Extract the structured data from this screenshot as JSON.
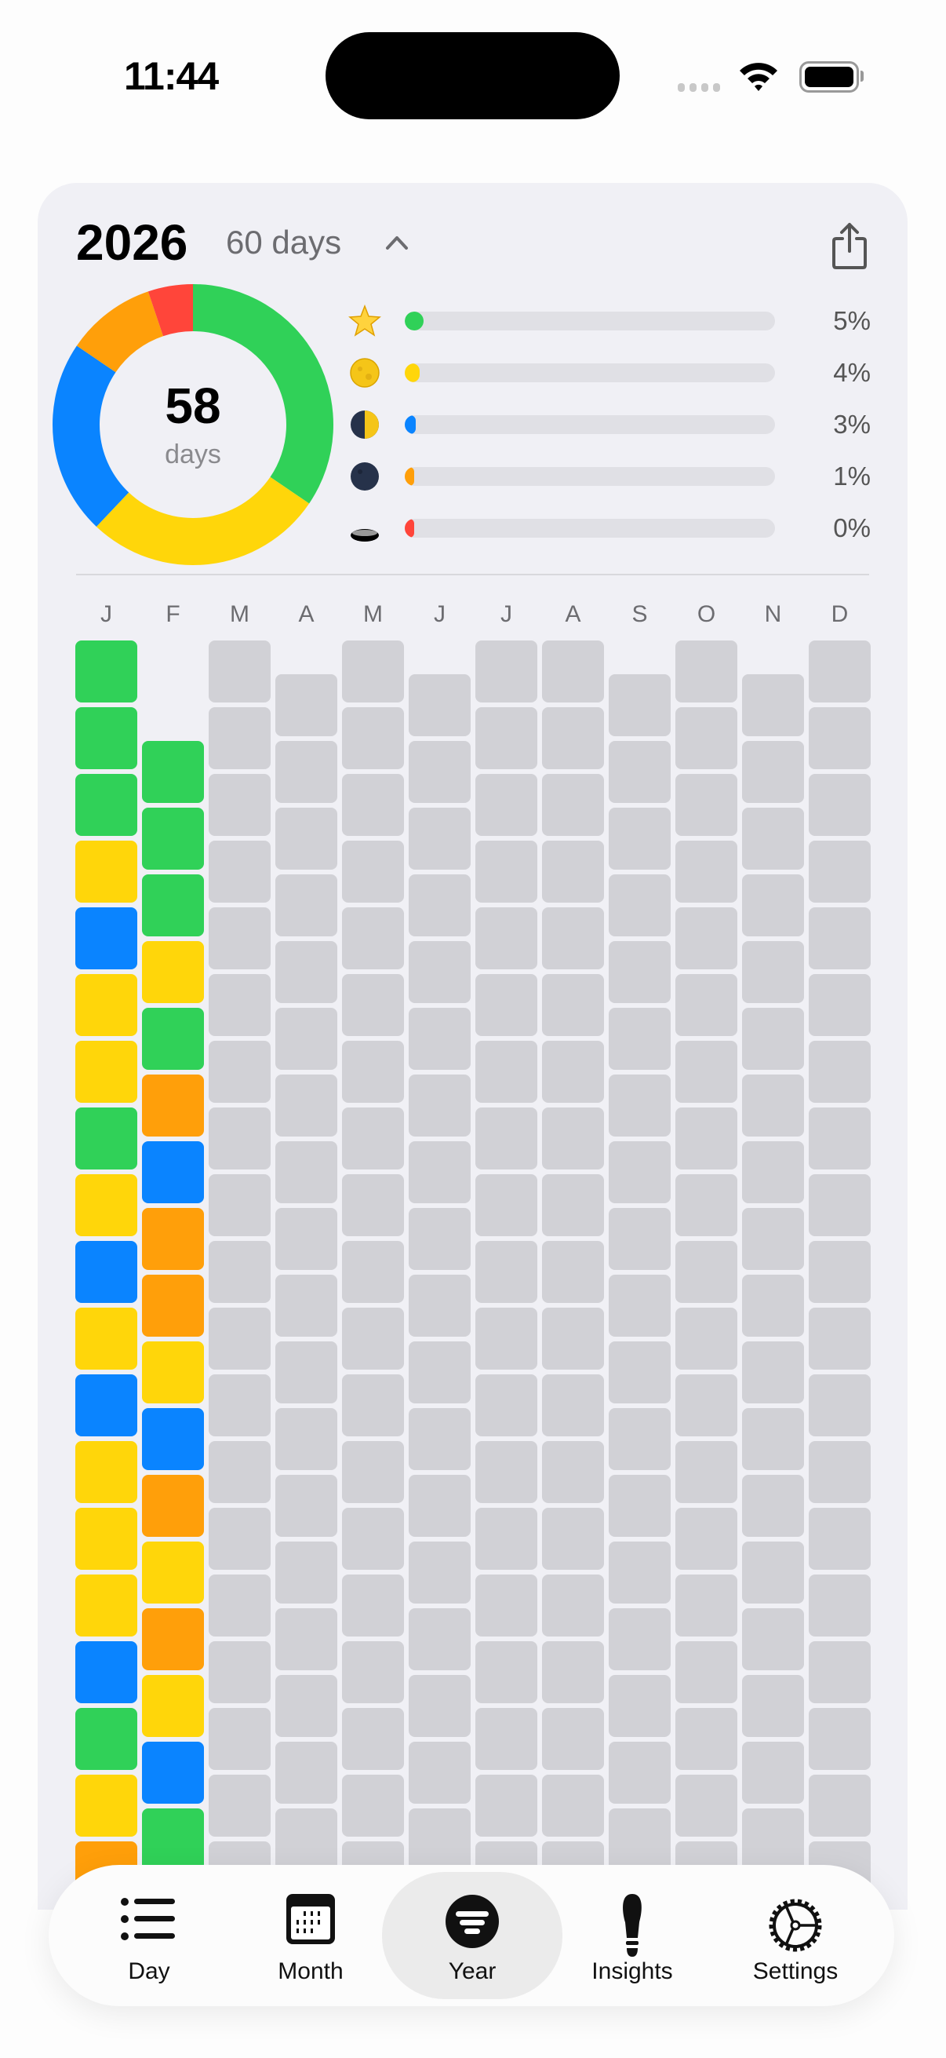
{
  "status_bar": {
    "time": "11:44"
  },
  "header": {
    "year": "2026",
    "day_count": "60 days",
    "collapse_icon": "chevron-up-icon",
    "share_icon": "share-icon"
  },
  "summary": {
    "total": "58",
    "total_label": "days",
    "donut": [
      {
        "mood": "great",
        "color": "#30d158",
        "days": 20
      },
      {
        "mood": "good",
        "color": "#ffd60a",
        "days": 16
      },
      {
        "mood": "okay",
        "color": "#0a84ff",
        "days": 13
      },
      {
        "mood": "bad",
        "color": "#ff9f0a",
        "days": 6
      },
      {
        "mood": "awful",
        "color": "#ff453a",
        "days": 3
      }
    ],
    "legend": [
      {
        "icon": "star-icon",
        "color": "#30d158",
        "percent": 5,
        "label": "5%"
      },
      {
        "icon": "full-moon-icon",
        "color": "#ffd60a",
        "percent": 4,
        "label": "4%"
      },
      {
        "icon": "half-moon-icon",
        "color": "#0a84ff",
        "percent": 3,
        "label": "3%"
      },
      {
        "icon": "new-moon-icon",
        "color": "#ff9f0a",
        "percent": 1,
        "label": "1%"
      },
      {
        "icon": "hole-icon",
        "color": "#ff453a",
        "percent": 0,
        "label": "0%"
      }
    ]
  },
  "calendar": {
    "colors": {
      "g": "#30d158",
      "y": "#ffd60a",
      "b": "#0a84ff",
      "o": "#ff9f0a",
      "r": "#ff453a",
      "empty": "#d1d1d6"
    },
    "months": [
      {
        "label": "J",
        "days": 31,
        "moods": [
          "g",
          "g",
          "g",
          "y",
          "b",
          "y",
          "y",
          "g",
          "y",
          "b",
          "y",
          "b",
          "y",
          "y",
          "y",
          "b",
          "g",
          "y",
          "o"
        ]
      },
      {
        "label": "F",
        "days": 28,
        "moods": [
          "g",
          "g",
          "g",
          "y",
          "g",
          "o",
          "b",
          "o",
          "o",
          "y",
          "b",
          "o",
          "y",
          "o",
          "y",
          "b",
          "g"
        ]
      },
      {
        "label": "M",
        "days": 31,
        "moods": []
      },
      {
        "label": "A",
        "days": 30,
        "moods": []
      },
      {
        "label": "M",
        "days": 31,
        "moods": []
      },
      {
        "label": "J",
        "days": 30,
        "moods": []
      },
      {
        "label": "J",
        "days": 31,
        "moods": []
      },
      {
        "label": "A",
        "days": 31,
        "moods": []
      },
      {
        "label": "S",
        "days": 30,
        "moods": []
      },
      {
        "label": "O",
        "days": 31,
        "moods": []
      },
      {
        "label": "N",
        "days": 30,
        "moods": []
      },
      {
        "label": "D",
        "days": 31,
        "moods": []
      }
    ]
  },
  "tabs": [
    {
      "label": "Day",
      "icon": "list-icon"
    },
    {
      "label": "Month",
      "icon": "calendar-icon"
    },
    {
      "label": "Year",
      "icon": "year-icon",
      "selected": true
    },
    {
      "label": "Insights",
      "icon": "lightbulb-icon"
    },
    {
      "label": "Settings",
      "icon": "gear-icon"
    }
  ]
}
